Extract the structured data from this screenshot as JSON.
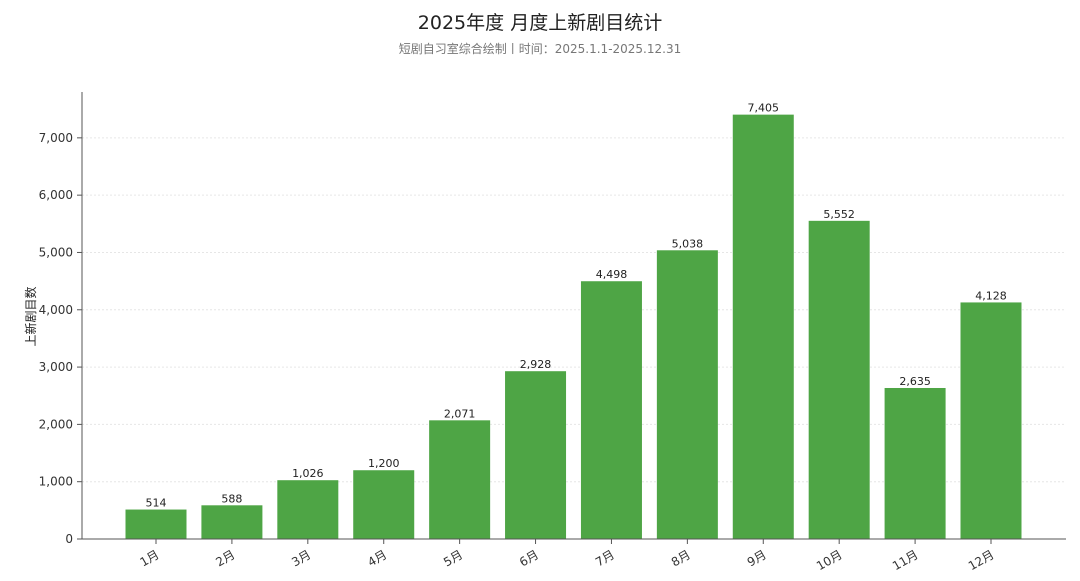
{
  "chart_data": {
    "type": "bar",
    "title": "2025年度 月度上新剧目统计",
    "subtitle": "短剧自习室综合绘制丨时间：2025.1.1-2025.12.31",
    "xlabel": "",
    "ylabel": "上新剧目数",
    "categories": [
      "1月",
      "2月",
      "3月",
      "4月",
      "5月",
      "6月",
      "7月",
      "8月",
      "9月",
      "10月",
      "11月",
      "12月"
    ],
    "values": [
      514,
      588,
      1026,
      1200,
      2071,
      2928,
      4498,
      5038,
      7405,
      5552,
      2635,
      4128
    ],
    "value_labels": [
      "514",
      "588",
      "1,026",
      "1,200",
      "2,071",
      "2,928",
      "4,498",
      "5,038",
      "7,405",
      "5,552",
      "2,635",
      "4,128"
    ],
    "ylim": [
      0,
      7800
    ],
    "yticks": [
      0,
      1000,
      2000,
      3000,
      4000,
      5000,
      6000,
      7000
    ],
    "ytick_labels": [
      "0",
      "1,000",
      "2,000",
      "3,000",
      "4,000",
      "5,000",
      "6,000",
      "7,000"
    ],
    "grid": true,
    "legend": "none",
    "colors": {
      "bar": "#4ea545",
      "grid": "#e6e6e6",
      "axis": "#555555"
    }
  }
}
